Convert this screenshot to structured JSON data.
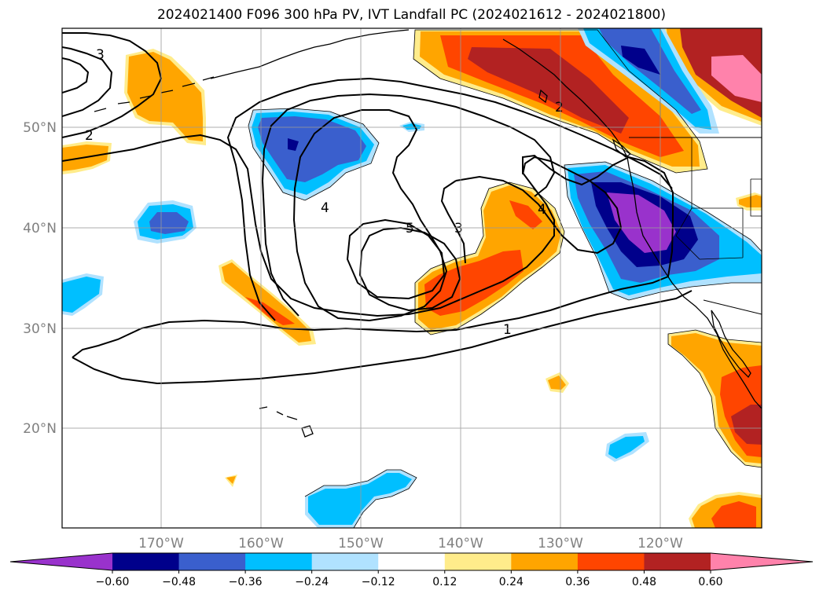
{
  "title": "2024021400 F096 300 hPa PV, IVT Landfall PC (2024021612 - 2024021800)",
  "lat_labels": [
    "50°N",
    "40°N",
    "30°N",
    "20°N"
  ],
  "lon_labels": [
    "170°W",
    "160°W",
    "150°W",
    "140°W",
    "130°W",
    "120°W"
  ],
  "contour_labels": [
    "3",
    "2",
    "4",
    "5",
    "3",
    "4",
    "2",
    "1"
  ],
  "colorbar": {
    "ticks": [
      "−0.60",
      "−0.48",
      "−0.36",
      "−0.24",
      "−0.12",
      "0.12",
      "0.24",
      "0.36",
      "0.48",
      "0.60"
    ],
    "colors": [
      "#9932cc",
      "#00008b",
      "#3a5fcd",
      "#00bfff",
      "#b0e2ff",
      "#ffffff",
      "#ffec8b",
      "#ffa500",
      "#ff4500",
      "#b22222",
      "#ff82ab"
    ],
    "extend": "both"
  },
  "colors": {
    "purple": "#9932cc",
    "navy": "#00008b",
    "royal": "#3a5fcd",
    "sky": "#00bfff",
    "pale_blue": "#b0e2ff",
    "pale_yellow": "#ffec8b",
    "orange": "#ffa500",
    "red_orange": "#ff4500",
    "brick": "#b22222",
    "pink": "#ff82ab"
  }
}
